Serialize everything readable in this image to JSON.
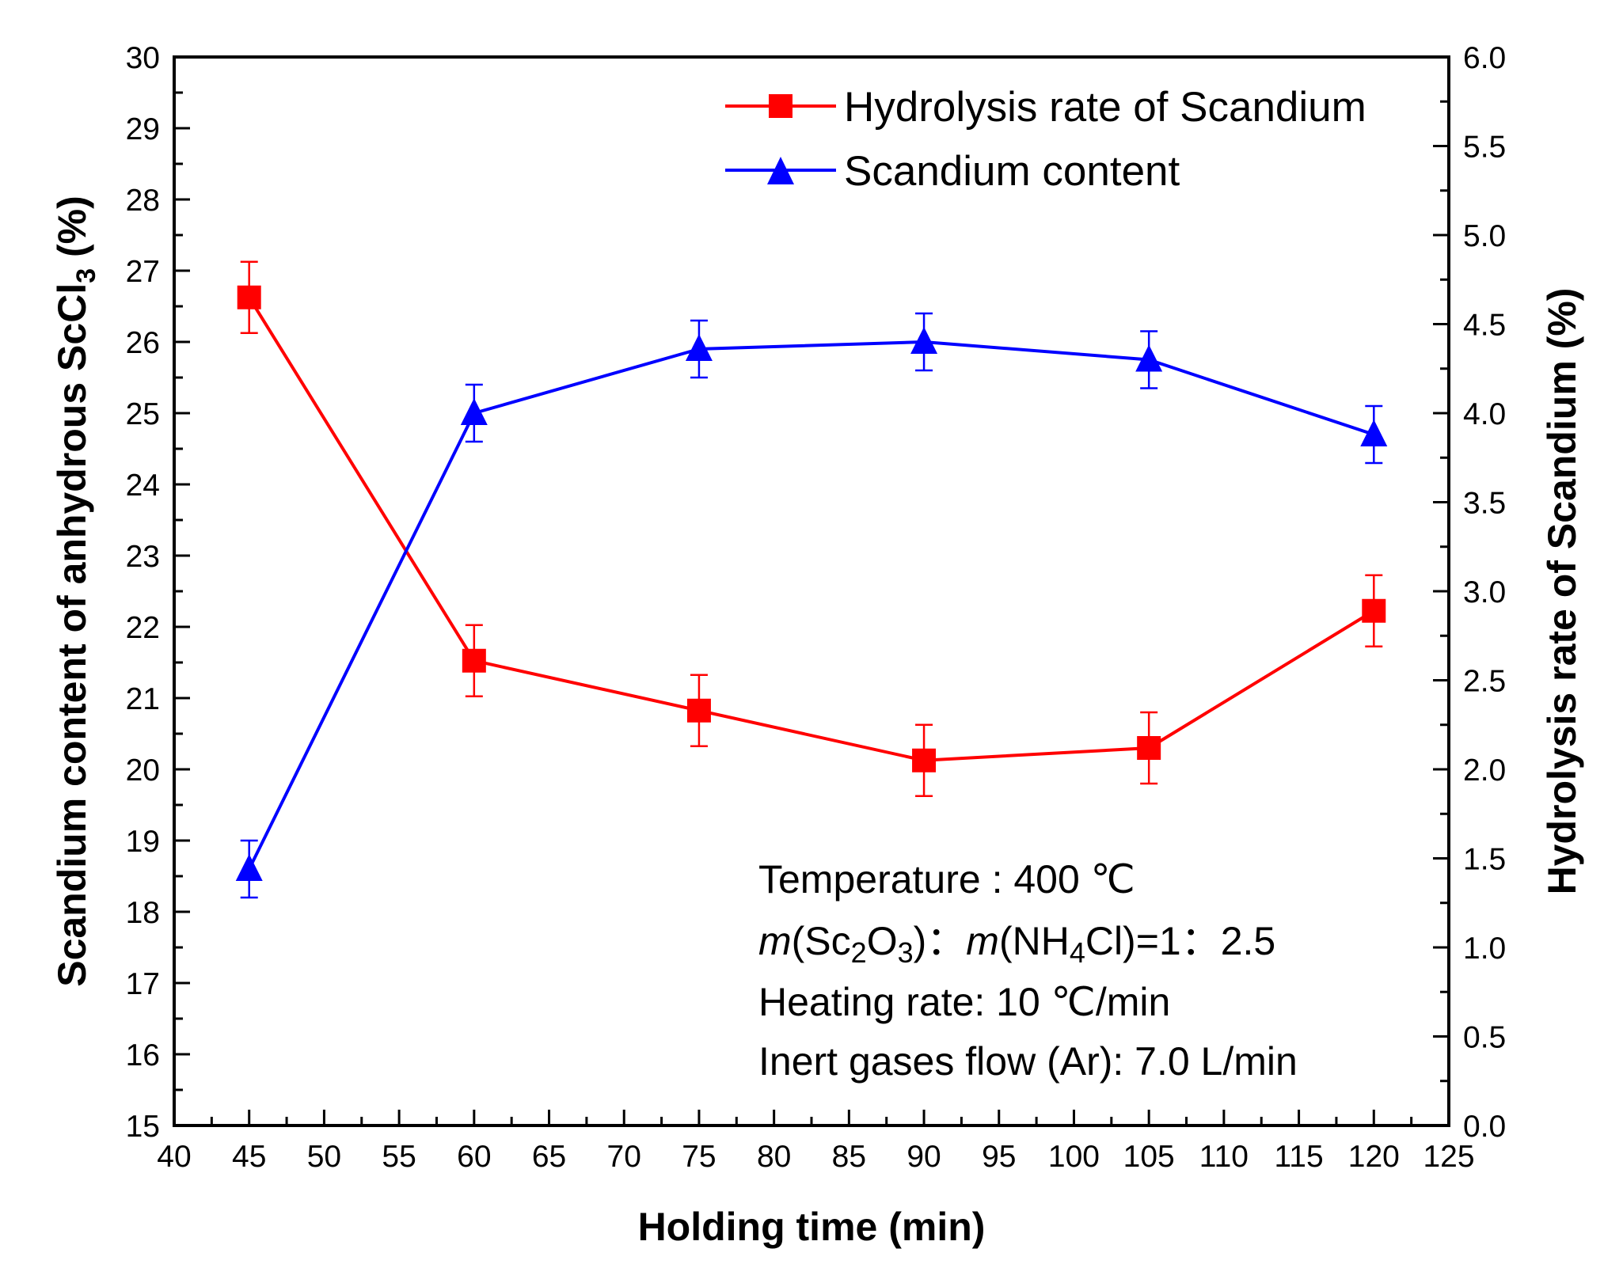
{
  "chart_data": {
    "type": "line",
    "xlabel": "Holding time (min)",
    "ylabel_left_prefix": "Scandium content of anhydrous ScCl",
    "ylabel_left_sub": "3",
    "ylabel_left_suffix": " (%)",
    "ylabel_right": "Hydrolysis rate of Scandium (%)",
    "xlim": [
      40,
      125
    ],
    "ylim_left": [
      15,
      30
    ],
    "ylim_right": [
      0.0,
      6.0
    ],
    "x_ticks": [
      "40",
      "45",
      "50",
      "55",
      "60",
      "65",
      "70",
      "75",
      "80",
      "85",
      "90",
      "95",
      "100",
      "105",
      "110",
      "115",
      "120",
      "125"
    ],
    "y_left_ticks": [
      "15",
      "16",
      "17",
      "18",
      "19",
      "20",
      "21",
      "22",
      "23",
      "24",
      "25",
      "26",
      "27",
      "28",
      "29",
      "30"
    ],
    "y_right_ticks": [
      "0.0",
      "0.5",
      "1.0",
      "1.5",
      "2.0",
      "2.5",
      "3.0",
      "3.5",
      "4.0",
      "4.5",
      "5.0",
      "5.5",
      "6.0"
    ],
    "x": [
      45,
      60,
      75,
      90,
      105,
      120
    ],
    "series": [
      {
        "name": "Hydrolysis rate of Scandium",
        "axis": "right",
        "color": "#ff0000",
        "marker": "square",
        "values": [
          4.65,
          2.61,
          2.33,
          2.05,
          2.12,
          2.89
        ],
        "error": [
          0.2,
          0.2,
          0.2,
          0.2,
          0.2,
          0.2
        ]
      },
      {
        "name": "Scandium content",
        "axis": "left",
        "color": "#0000ff",
        "marker": "triangle",
        "values": [
          18.6,
          25.0,
          25.9,
          26.0,
          25.75,
          24.7
        ],
        "error": [
          0.4,
          0.4,
          0.4,
          0.4,
          0.4,
          0.4
        ]
      }
    ],
    "legend_position": "top-right",
    "annotations": {
      "temperature": "Temperature : 400 ℃",
      "ratio": {
        "m1": "m",
        "open1": "(Sc",
        "sub1": "2",
        "mid1": "O",
        "sub2": "3",
        "close1": ")",
        "colon": "：",
        "m2": "m",
        "open2": "(NH",
        "sub3": "4",
        "close2": "Cl)=1",
        "colon2": "：",
        "tail": "2.5"
      },
      "heating": "Heating rate: 10 ℃/min",
      "flow": "Inert gases flow (Ar): 7.0 L/min"
    }
  }
}
